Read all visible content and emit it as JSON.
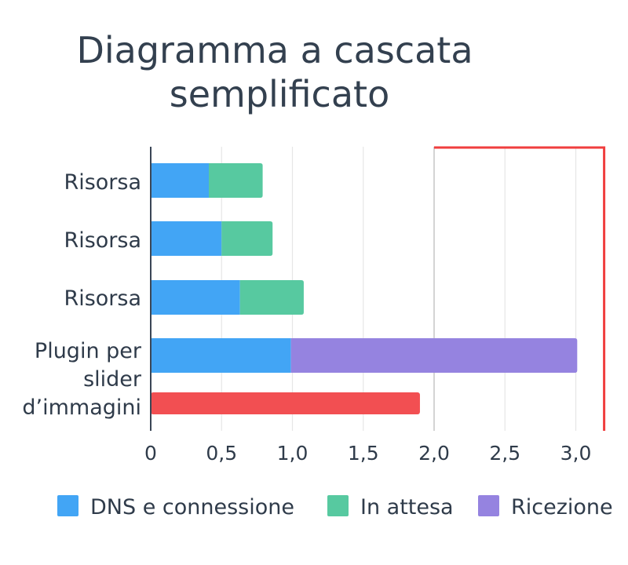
{
  "chart_data": {
    "type": "bar",
    "orientation": "horizontal",
    "stacked": true,
    "title": [
      "Diagramma a cascata",
      "semplificato"
    ],
    "categories": [
      [
        "Risorsa"
      ],
      [
        "Risorsa"
      ],
      [
        "Risorsa"
      ],
      [
        "Plugin per",
        "slider",
        "d’immagini"
      ]
    ],
    "series": [
      {
        "name": "DNS e connessione",
        "color": "#42a5f5",
        "values": [
          0.41,
          0.5,
          0.63,
          0.99
        ]
      },
      {
        "name": "In attesa",
        "color": "#57c9a0",
        "values": [
          0.38,
          0.36,
          0.45,
          0
        ]
      },
      {
        "name": "Ricezione",
        "color": "#9583e0",
        "values": [
          0,
          0,
          0,
          2.02
        ]
      }
    ],
    "extra_bar": {
      "category_index": 3,
      "value": 1.9,
      "color": "#f24f52"
    },
    "marker": {
      "value": 3.2,
      "color": "#f03e3e"
    },
    "reference_line": 2.0,
    "xlim": [
      0,
      3.2
    ],
    "xticks": [
      "0",
      "0,5",
      "1,0",
      "1,5",
      "2,0",
      "2,5",
      "3,0"
    ],
    "xtick_values": [
      0,
      0.5,
      1.0,
      1.5,
      2.0,
      2.5,
      3.0
    ],
    "grid": true,
    "legend": "bottom"
  }
}
